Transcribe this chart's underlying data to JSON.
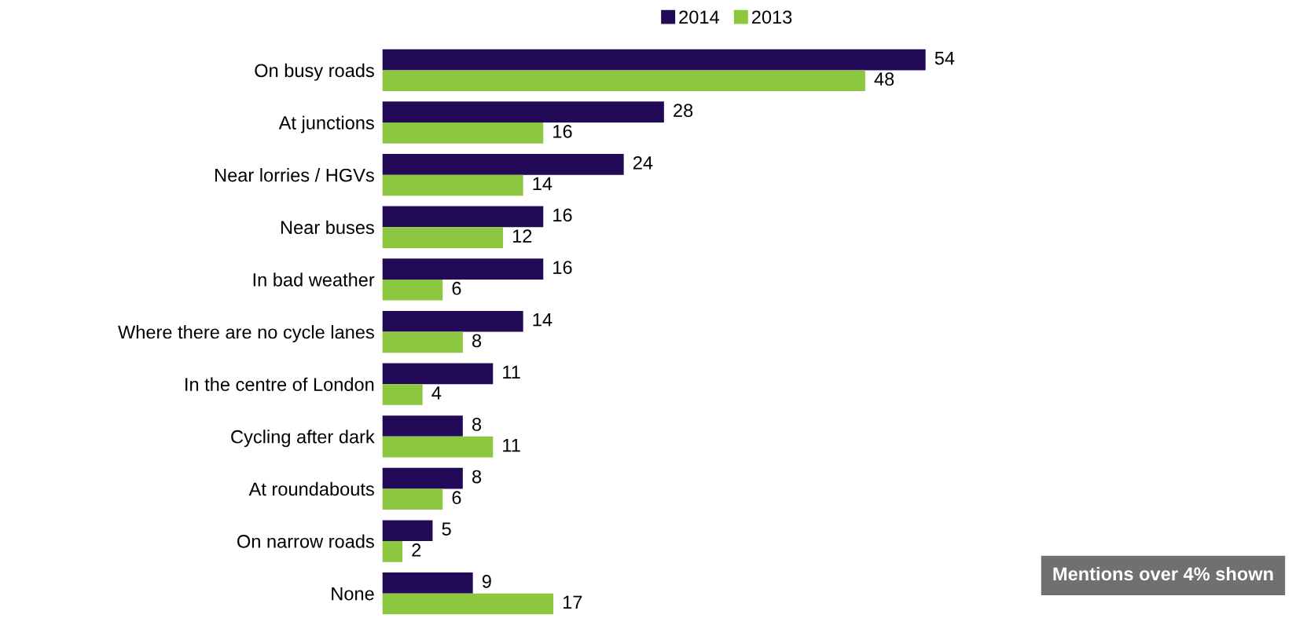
{
  "chart_data": {
    "type": "bar",
    "orientation": "horizontal",
    "categories": [
      "On busy roads",
      "At junctions",
      "Near lorries / HGVs",
      "Near buses",
      "In bad weather",
      "Where there are no cycle lanes",
      "In the centre of London",
      "Cycling after dark",
      "At roundabouts",
      "On narrow roads",
      "None"
    ],
    "series": [
      {
        "name": "2014",
        "color": "#230a59",
        "values": [
          54,
          28,
          24,
          16,
          16,
          14,
          11,
          8,
          8,
          5,
          9
        ]
      },
      {
        "name": "2013",
        "color": "#8dc63f",
        "values": [
          48,
          16,
          14,
          12,
          6,
          8,
          4,
          11,
          6,
          2,
          17
        ]
      }
    ],
    "data_labels": true,
    "legend": "top",
    "grid": false,
    "tick_labels": "y",
    "annotations": [
      "Mentions over 4% shown"
    ]
  }
}
